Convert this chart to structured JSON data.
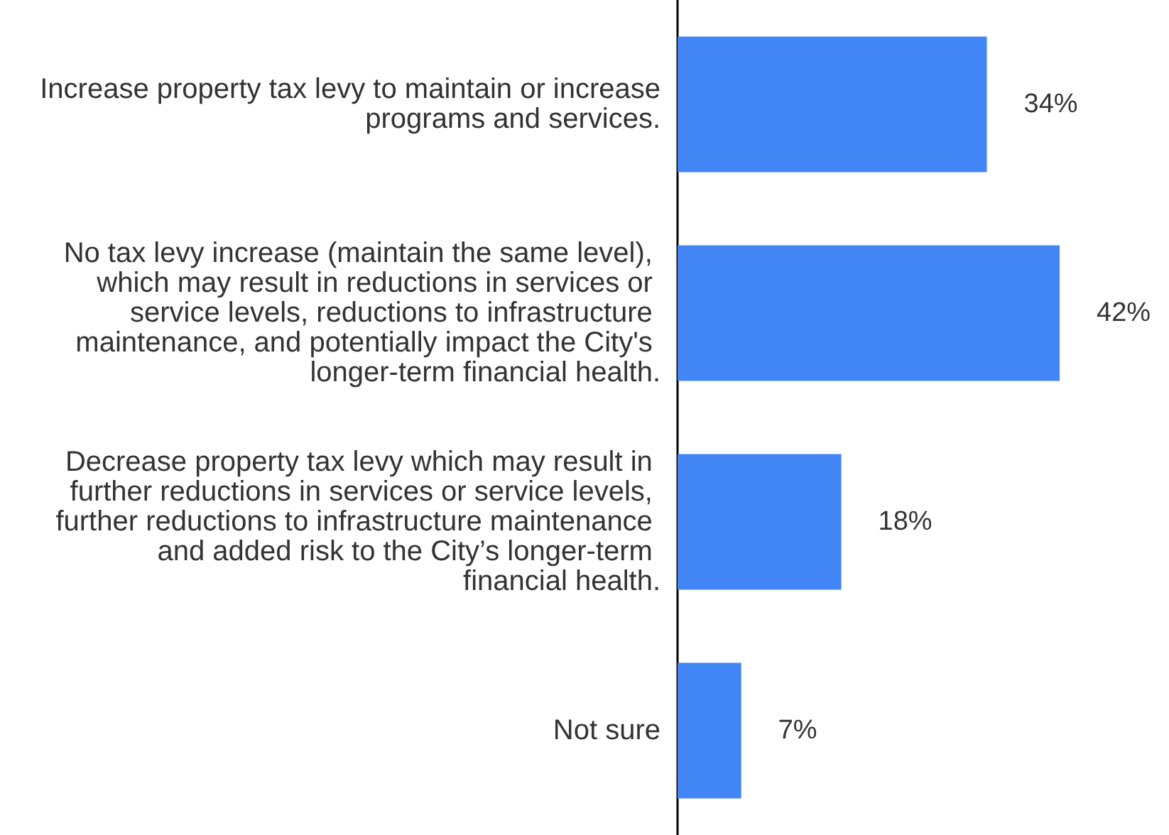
{
  "chart_data": {
    "type": "bar",
    "orientation": "horizontal",
    "categories": [
      "Increase property tax levy to maintain or increase programs and services.",
      "No tax levy increase (maintain the same level), which may result in reductions in services or service levels, reductions to infrastructure maintenance, and potentially impact the City's longer-term financial health.",
      "Decrease property tax levy which may result in further reductions in services or service levels, further reductions to infrastructure maintenance and added risk to the City’s longer-term financial health.",
      "Not sure"
    ],
    "values": [
      34,
      42,
      18,
      7
    ],
    "value_labels": [
      "34%",
      "42%",
      "18%",
      "7%"
    ],
    "color": "#4285f4"
  }
}
